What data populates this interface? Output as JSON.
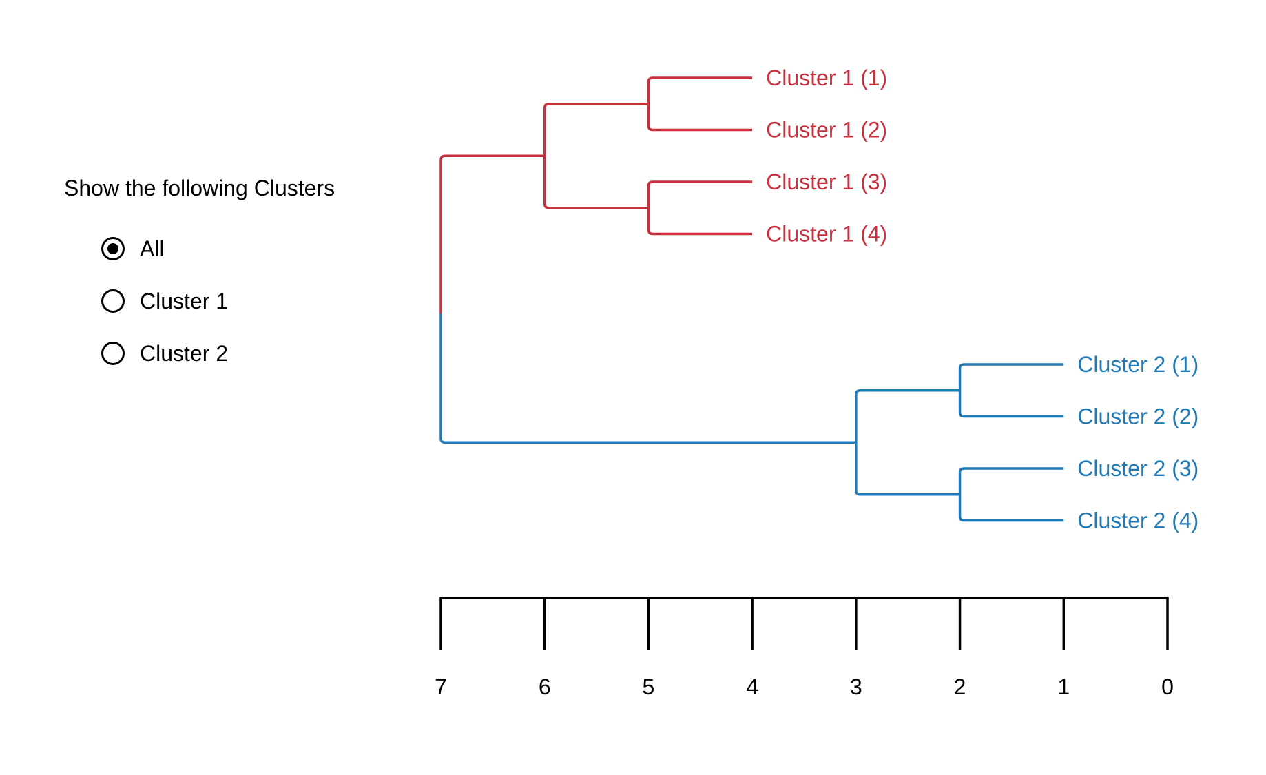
{
  "controls": {
    "heading": "Show the following Clusters",
    "options": [
      {
        "label": "All",
        "checked": true
      },
      {
        "label": "Cluster 1",
        "checked": false
      },
      {
        "label": "Cluster 2",
        "checked": false
      }
    ]
  },
  "colors": {
    "cluster1": "#c9303e",
    "cluster2": "#1f7ab8",
    "axis": "#000000"
  },
  "chart_data": {
    "type": "dendrogram",
    "x_ticks": [
      7,
      6,
      5,
      4,
      3,
      2,
      1,
      0
    ],
    "xlim": [
      7,
      0
    ],
    "leaves": [
      {
        "label": "Cluster 1 (1)",
        "cluster": "cluster1"
      },
      {
        "label": "Cluster 1 (2)",
        "cluster": "cluster1"
      },
      {
        "label": "Cluster 1 (3)",
        "cluster": "cluster1"
      },
      {
        "label": "Cluster 1 (4)",
        "cluster": "cluster1"
      },
      {
        "label": "Cluster 2 (1)",
        "cluster": "cluster2"
      },
      {
        "label": "Cluster 2 (2)",
        "cluster": "cluster2"
      },
      {
        "label": "Cluster 2 (3)",
        "cluster": "cluster2"
      },
      {
        "label": "Cluster 2 (4)",
        "cluster": "cluster2"
      }
    ],
    "merges": [
      {
        "children": [
          0,
          1
        ],
        "height": 5,
        "cluster": "cluster1"
      },
      {
        "children": [
          2,
          3
        ],
        "height": 5,
        "cluster": "cluster1"
      },
      {
        "children": [
          8,
          9
        ],
        "height": 6,
        "cluster": "cluster1"
      },
      {
        "children": [
          4,
          5
        ],
        "height": 2,
        "cluster": "cluster2"
      },
      {
        "children": [
          6,
          7
        ],
        "height": 2,
        "cluster": "cluster2"
      },
      {
        "children": [
          11,
          12
        ],
        "height": 3,
        "cluster": "cluster2"
      },
      {
        "children": [
          10,
          13
        ],
        "height": 7,
        "cluster": "mixed"
      }
    ],
    "leaf_heights": {
      "cluster1": 4,
      "cluster2": 1
    }
  }
}
